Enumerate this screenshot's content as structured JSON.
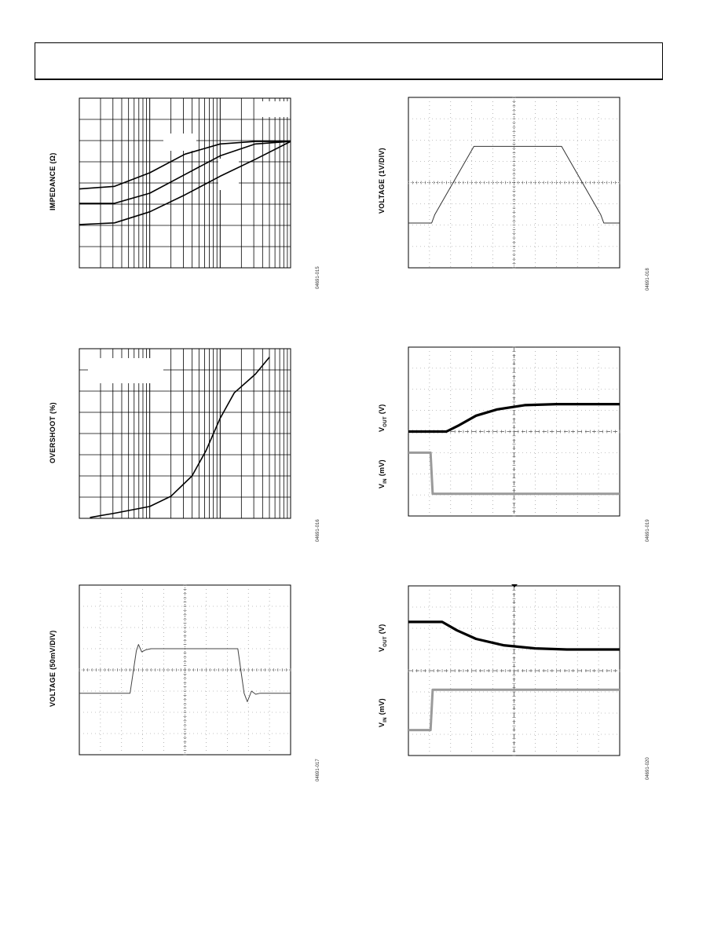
{
  "chart_data": [
    {
      "id": "impedance",
      "type": "line",
      "xscale": "log",
      "ylabel": "IMPEDANCE (Ω)",
      "figure_id": "04691-015",
      "series": [
        {
          "points": [
            [
              0,
              0.465
            ],
            [
              0.5,
              0.48
            ],
            [
              1.0,
              0.56
            ],
            [
              1.5,
              0.67
            ],
            [
              2.0,
              0.73
            ],
            [
              2.5,
              0.745
            ],
            [
              3.0,
              0.745
            ]
          ]
        },
        {
          "points": [
            [
              0,
              0.38
            ],
            [
              0.5,
              0.38
            ],
            [
              1.0,
              0.44
            ],
            [
              1.5,
              0.55
            ],
            [
              2.0,
              0.66
            ],
            [
              2.5,
              0.73
            ],
            [
              3.0,
              0.745
            ]
          ]
        },
        {
          "points": [
            [
              0,
              0.255
            ],
            [
              0.5,
              0.265
            ],
            [
              1.0,
              0.33
            ],
            [
              1.5,
              0.43
            ],
            [
              2.0,
              0.54
            ],
            [
              2.5,
              0.64
            ],
            [
              3.0,
              0.745
            ]
          ]
        }
      ]
    },
    {
      "id": "overshoot",
      "type": "line",
      "xscale": "log",
      "ylabel": "OVERSHOOT (%)",
      "figure_id": "04691-016",
      "series": [
        {
          "points": [
            [
              0.15,
              0.005
            ],
            [
              0.5,
              0.03
            ],
            [
              1.0,
              0.07
            ],
            [
              1.3,
              0.13
            ],
            [
              1.6,
              0.25
            ],
            [
              1.8,
              0.4
            ],
            [
              2.0,
              0.59
            ],
            [
              2.2,
              0.74
            ],
            [
              2.5,
              0.85
            ],
            [
              2.7,
              0.95
            ]
          ]
        }
      ]
    },
    {
      "id": "voltage_50mv",
      "type": "line",
      "ylabel": "VOLTAGE (50mV/DIV)",
      "figure_id": "04691-017",
      "series": [
        {
          "points": [
            [
              0,
              2.9
            ],
            [
              2.4,
              2.9
            ],
            [
              2.7,
              4.9
            ],
            [
              2.8,
              5.2
            ],
            [
              2.95,
              4.85
            ],
            [
              3.15,
              4.95
            ],
            [
              3.4,
              5.0
            ],
            [
              7.5,
              5.0
            ],
            [
              7.8,
              2.9
            ],
            [
              7.95,
              2.5
            ],
            [
              8.15,
              3.0
            ],
            [
              8.35,
              2.85
            ],
            [
              8.55,
              2.9
            ],
            [
              10,
              2.9
            ]
          ]
        }
      ]
    },
    {
      "id": "voltage_1v",
      "type": "line",
      "ylabel": "VOLTAGE (1V/DIV)",
      "figure_id": "04691-018",
      "series": [
        {
          "points": [
            [
              0,
              2.1
            ],
            [
              1.1,
              2.1
            ],
            [
              1.25,
              2.5
            ],
            [
              3.1,
              5.7
            ],
            [
              7.25,
              5.7
            ],
            [
              9.1,
              2.5
            ],
            [
              9.25,
              2.1
            ],
            [
              10,
              2.1
            ]
          ]
        }
      ]
    },
    {
      "id": "step_rise",
      "type": "line",
      "ylabel_top": "V",
      "ylabel_top_sub": "OUT",
      "ylabel_top_unit": "(V)",
      "ylabel_bottom": "V",
      "ylabel_bottom_sub": "IN",
      "ylabel_bottom_unit": "(mV)",
      "figure_id": "04691-019",
      "series": [
        {
          "points": [
            [
              0,
              4.0
            ],
            [
              1.8,
              4.0
            ],
            [
              2.4,
              4.3
            ],
            [
              3.2,
              4.75
            ],
            [
              4.2,
              5.05
            ],
            [
              5.5,
              5.25
            ],
            [
              7.0,
              5.3
            ],
            [
              10,
              5.3
            ]
          ]
        },
        {
          "points": [
            [
              0,
              3.0
            ],
            [
              1.05,
              3.0
            ],
            [
              1.15,
              1.05
            ],
            [
              10,
              1.05
            ]
          ]
        }
      ]
    },
    {
      "id": "step_fall",
      "type": "line",
      "ylabel_top": "V",
      "ylabel_top_sub": "OUT",
      "ylabel_top_unit": "(V)",
      "ylabel_bottom": "V",
      "ylabel_bottom_sub": "IN",
      "ylabel_bottom_unit": "(mV)",
      "figure_id": "04691-020",
      "series": [
        {
          "points": [
            [
              0,
              6.3
            ],
            [
              1.6,
              6.3
            ],
            [
              2.3,
              5.9
            ],
            [
              3.2,
              5.5
            ],
            [
              4.5,
              5.2
            ],
            [
              6.0,
              5.05
            ],
            [
              7.5,
              5.0
            ],
            [
              10,
              5.0
            ]
          ]
        },
        {
          "points": [
            [
              0,
              1.2
            ],
            [
              1.05,
              1.2
            ],
            [
              1.15,
              3.1
            ],
            [
              10,
              3.1
            ]
          ]
        }
      ]
    }
  ]
}
